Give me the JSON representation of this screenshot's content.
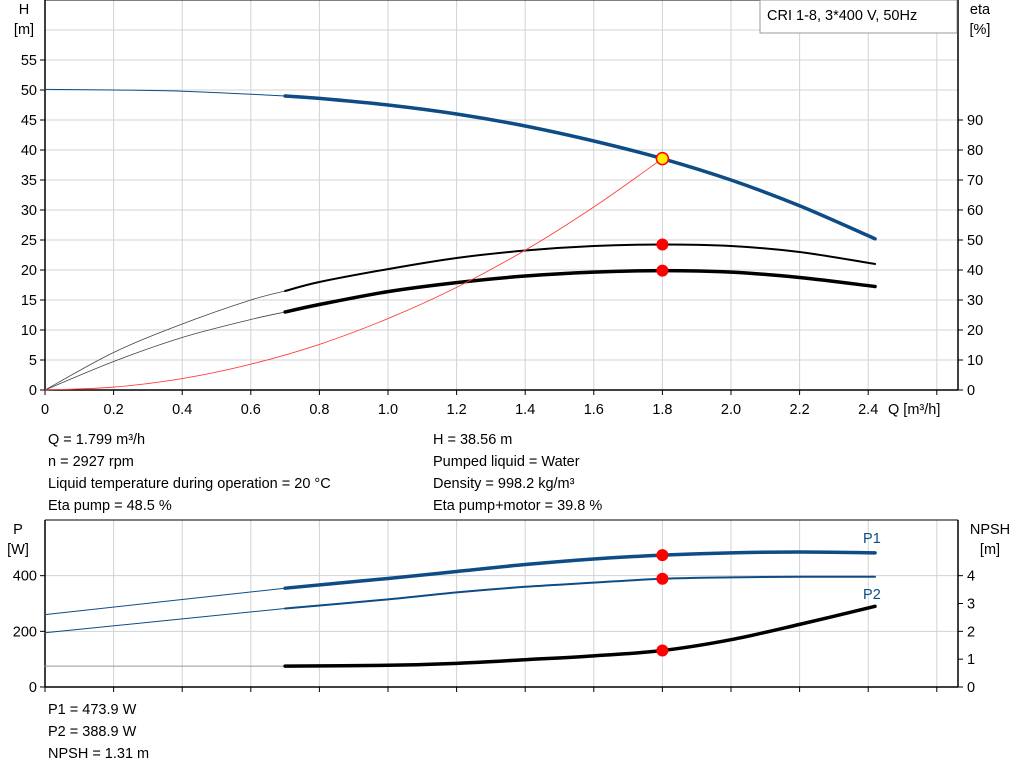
{
  "colors": {
    "head": "#0e4c86",
    "eta": "#000000",
    "system": "#ff4040",
    "power": "#0e4c86",
    "npsh": "#000000",
    "duty_point": "#ff0000",
    "duty_point_head": "#ffee00",
    "grid": "#d0d3d6"
  },
  "chart_data": [
    {
      "type": "line",
      "legend_box": "CRI 1-8, 3*400 V, 50Hz",
      "xlabel": "Q [m³/h]",
      "ylabel_left": [
        "H",
        "[m]"
      ],
      "ylabel_right": [
        "eta",
        "[%]"
      ],
      "xlim": [
        0,
        2.6
      ],
      "ylim_left": [
        0,
        65
      ],
      "ylim_right": [
        0,
        100
      ],
      "x_ticks": [
        "0",
        "0.2",
        "0.4",
        "0.6",
        "0.8",
        "1.0",
        "1.2",
        "1.4",
        "1.6",
        "1.8",
        "2.0",
        "2.2",
        "2.4"
      ],
      "y_left_ticks": [
        "0",
        "5",
        "10",
        "15",
        "20",
        "25",
        "30",
        "35",
        "40",
        "45",
        "50",
        "55"
      ],
      "y_right_ticks": [
        "0",
        "10",
        "20",
        "30",
        "40",
        "50",
        "60",
        "70",
        "80",
        "90"
      ],
      "grid": true,
      "series": [
        {
          "key": "head",
          "axis": "left",
          "thick_from": 0.7,
          "x": [
            0,
            0.2,
            0.4,
            0.6,
            0.7,
            0.8,
            1.0,
            1.2,
            1.4,
            1.6,
            1.8,
            2.0,
            2.2,
            2.42
          ],
          "y": [
            50.1,
            50.0,
            49.8,
            49.3,
            49.0,
            48.6,
            47.5,
            46.0,
            44.0,
            41.5,
            38.56,
            35.0,
            30.7,
            25.2
          ]
        },
        {
          "key": "eta_pump",
          "axis": "right",
          "thick_from": 0.7,
          "x": [
            0,
            0.2,
            0.4,
            0.6,
            0.7,
            0.8,
            1.0,
            1.2,
            1.4,
            1.6,
            1.8,
            2.0,
            2.2,
            2.42
          ],
          "y": [
            0,
            12.5,
            22,
            30,
            33,
            36,
            40.3,
            44,
            46.5,
            48,
            48.5,
            48,
            46,
            42
          ]
        },
        {
          "key": "eta_pump_motor",
          "axis": "right",
          "thick_from": 0.7,
          "x": [
            0,
            0.2,
            0.4,
            0.6,
            0.7,
            0.8,
            1.0,
            1.2,
            1.4,
            1.6,
            1.8,
            2.0,
            2.2,
            2.42
          ],
          "y": [
            0,
            9.5,
            17.5,
            23.5,
            26,
            28.5,
            32.8,
            35.8,
            38,
            39.3,
            39.8,
            39.3,
            37.5,
            34.5
          ]
        },
        {
          "key": "system",
          "axis": "left",
          "x": [
            0,
            0.2,
            0.4,
            0.6,
            0.8,
            1.0,
            1.2,
            1.4,
            1.6,
            1.8
          ],
          "y": [
            0,
            0.48,
            1.9,
            4.3,
            7.6,
            11.9,
            17.1,
            23.3,
            30.5,
            38.56
          ]
        }
      ],
      "duty_points": [
        {
          "x": 1.8,
          "y": 38.56,
          "axis": "left",
          "head": true
        },
        {
          "x": 1.8,
          "y": 48.5,
          "axis": "right"
        },
        {
          "x": 1.8,
          "y": 39.8,
          "axis": "right"
        }
      ]
    },
    {
      "type": "line",
      "ylabel_left": [
        "P",
        "[W]"
      ],
      "ylabel_right": [
        "NPSH",
        "[m]"
      ],
      "xlim": [
        0,
        2.6
      ],
      "ylim_left": [
        0,
        600
      ],
      "ylim_right": [
        0,
        6
      ],
      "y_left_ticks": [
        "0",
        "200",
        "400"
      ],
      "y_right_ticks": [
        "0",
        "1",
        "2",
        "3",
        "4"
      ],
      "grid": true,
      "series": [
        {
          "key": "P1",
          "name": "P1",
          "axis": "left",
          "thick_from": 0.7,
          "x": [
            0,
            0.7,
            1.0,
            1.2,
            1.4,
            1.6,
            1.8,
            2.0,
            2.2,
            2.42
          ],
          "y": [
            260,
            355,
            390,
            415,
            440,
            460,
            473.9,
            482,
            485,
            482
          ]
        },
        {
          "key": "P2",
          "name": "P2",
          "axis": "left",
          "thick_from": 0.7,
          "x": [
            0,
            0.7,
            1.0,
            1.2,
            1.4,
            1.6,
            1.8,
            2.0,
            2.2,
            2.42
          ],
          "y": [
            195,
            282,
            315,
            340,
            360,
            375,
            388.9,
            394,
            396,
            396
          ]
        },
        {
          "key": "NPSH",
          "axis": "right",
          "thick_from": 0.7,
          "x": [
            0,
            0.7,
            1.0,
            1.2,
            1.4,
            1.6,
            1.8,
            2.0,
            2.2,
            2.42
          ],
          "y": [
            0.75,
            0.75,
            0.78,
            0.85,
            0.98,
            1.12,
            1.31,
            1.7,
            2.25,
            2.9
          ]
        }
      ],
      "duty_points": [
        {
          "x": 1.8,
          "y": 473.9,
          "axis": "left"
        },
        {
          "x": 1.8,
          "y": 388.9,
          "axis": "left"
        },
        {
          "x": 1.8,
          "y": 1.31,
          "axis": "right"
        }
      ]
    }
  ],
  "readout_top_left": [
    "Q = 1.799 m³/h",
    "n = 2927 rpm",
    "Liquid temperature during operation = 20 °C",
    "Eta pump = 48.5 %"
  ],
  "readout_top_right": [
    "H = 38.56 m",
    "Pumped liquid = Water",
    "Density = 998.2 kg/m³",
    "Eta pump+motor = 39.8 %"
  ],
  "readout_bottom": [
    "P1 = 473.9 W",
    "P2 = 388.9 W",
    "NPSH = 1.31 m"
  ]
}
